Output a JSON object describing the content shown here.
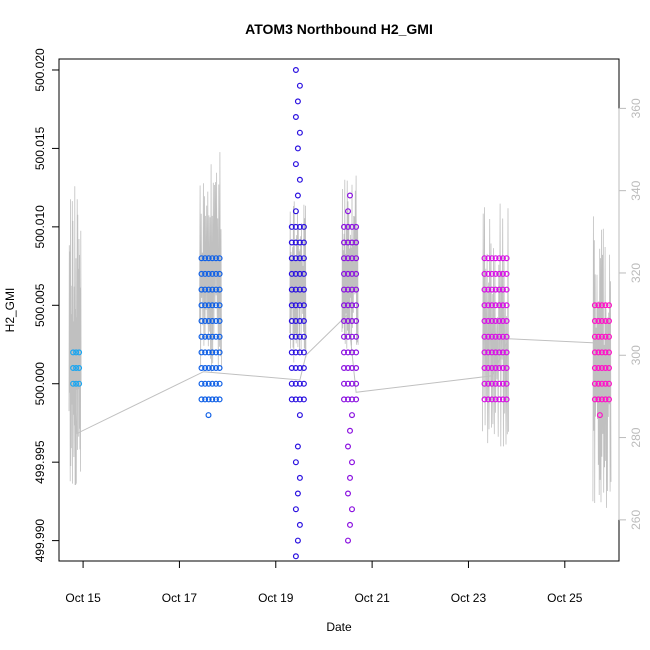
{
  "chart_data": {
    "type": "scatter",
    "title": "ATOM3 Northbound H2_GMI",
    "xlabel": "Date",
    "ylabel": "H2_GMI",
    "x_ticks": [
      {
        "date": "2014-10-15",
        "label": "Oct 15"
      },
      {
        "date": "2014-10-17",
        "label": "Oct 17"
      },
      {
        "date": "2014-10-19",
        "label": "Oct 19"
      },
      {
        "date": "2014-10-21",
        "label": "Oct 21"
      },
      {
        "date": "2014-10-23",
        "label": "Oct 23"
      },
      {
        "date": "2014-10-25",
        "label": "Oct 25"
      }
    ],
    "xlim": [
      "2014-10-14T12:00",
      "2014-10-26T03:00"
    ],
    "ylim": [
      499.9887,
      500.0207
    ],
    "y_ticks": [
      "499.990",
      "499.995",
      "500.000",
      "500.005",
      "500.010",
      "500.015",
      "500.020"
    ],
    "y2_ticks": [
      "260",
      "280",
      "300",
      "320",
      "340",
      "360"
    ],
    "y2lim": [
      250,
      372
    ],
    "grid": false,
    "colors": {
      "line": "#c0c0c0",
      "seg1": "#1aa5f0",
      "seg2": "#1060e6",
      "seg3": "#2a10e0",
      "seg4": "#8a10e0",
      "seg5": "#d810e6",
      "seg6": "#ff10c8",
      "right_axis": "#bbbbbb"
    },
    "series": [
      {
        "color": "#1aa5f0",
        "x_start": "2014-10-14T19:00",
        "x_end": "2014-10-14T22:00",
        "y_values": [
          500.0,
          500.001,
          500.002
        ]
      },
      {
        "color": "#1060e6",
        "x_start": "2014-10-17T11:00",
        "x_end": "2014-10-17T20:00",
        "y_values": [
          499.998,
          499.999,
          500.0,
          500.001,
          500.002,
          500.003,
          500.004,
          500.005,
          500.006,
          500.007,
          500.008
        ]
      },
      {
        "color": "#2a10e0",
        "x_start": "2014-10-19T08:00",
        "x_end": "2014-10-19T14:00",
        "y_values": [
          499.989,
          499.99,
          499.991,
          499.992,
          499.993,
          499.994,
          499.995,
          499.996,
          499.998,
          499.999,
          500.0,
          500.001,
          500.002,
          500.003,
          500.004,
          500.005,
          500.006,
          500.007,
          500.008,
          500.009,
          500.01,
          500.011,
          500.012,
          500.013,
          500.014,
          500.015,
          500.016,
          500.017,
          500.018,
          500.019,
          500.02
        ]
      },
      {
        "color": "#8a10e0",
        "x_start": "2014-10-20T10:00",
        "x_end": "2014-10-20T16:00",
        "y_values": [
          499.99,
          499.991,
          499.992,
          499.993,
          499.994,
          499.995,
          499.996,
          499.997,
          499.998,
          499.999,
          500.0,
          500.001,
          500.002,
          500.003,
          500.004,
          500.005,
          500.006,
          500.007,
          500.008,
          500.009,
          500.01,
          500.011,
          500.012
        ]
      },
      {
        "color": "#d810e6",
        "x_start": "2014-10-23T08:00",
        "x_end": "2014-10-23T19:00",
        "y_values": [
          499.999,
          500.0,
          500.001,
          500.002,
          500.003,
          500.004,
          500.005,
          500.006,
          500.007,
          500.008
        ]
      },
      {
        "color": "#ff10c8",
        "x_start": "2014-10-25T15:00",
        "x_end": "2014-10-25T22:00",
        "y_values": [
          499.998,
          499.999,
          500.0,
          500.001,
          500.002,
          500.003,
          500.004,
          500.005
        ]
      }
    ],
    "secondary_line": {
      "color": "#c0c0c0",
      "points": [
        [
          "2014-10-14T18:00",
          310
        ],
        [
          "2014-10-14T21:00",
          281
        ],
        [
          "2014-10-17T12:00",
          296
        ],
        [
          "2014-10-19T12:00",
          294
        ],
        [
          "2014-10-19T15:00",
          300
        ],
        [
          "2014-10-20T12:00",
          310
        ],
        [
          "2014-10-20T16:00",
          291
        ],
        [
          "2014-10-23T12:00",
          295
        ],
        [
          "2014-10-23T20:00",
          304
        ],
        [
          "2014-10-25T15:00",
          303
        ]
      ],
      "bursts": [
        {
          "x_start": "2014-10-14T17:00",
          "x_end": "2014-10-14T23:00",
          "min": 262,
          "max": 342
        },
        {
          "x_start": "2014-10-17T10:00",
          "x_end": "2014-10-17T21:00",
          "min": 293,
          "max": 350
        },
        {
          "x_start": "2014-10-19T07:00",
          "x_end": "2014-10-19T15:00",
          "min": 296,
          "max": 340
        },
        {
          "x_start": "2014-10-20T09:00",
          "x_end": "2014-10-20T17:00",
          "min": 298,
          "max": 344
        },
        {
          "x_start": "2014-10-23T07:00",
          "x_end": "2014-10-23T20:00",
          "min": 274,
          "max": 337
        },
        {
          "x_start": "2014-10-25T14:00",
          "x_end": "2014-10-25T23:00",
          "min": 259,
          "max": 334
        }
      ]
    }
  }
}
